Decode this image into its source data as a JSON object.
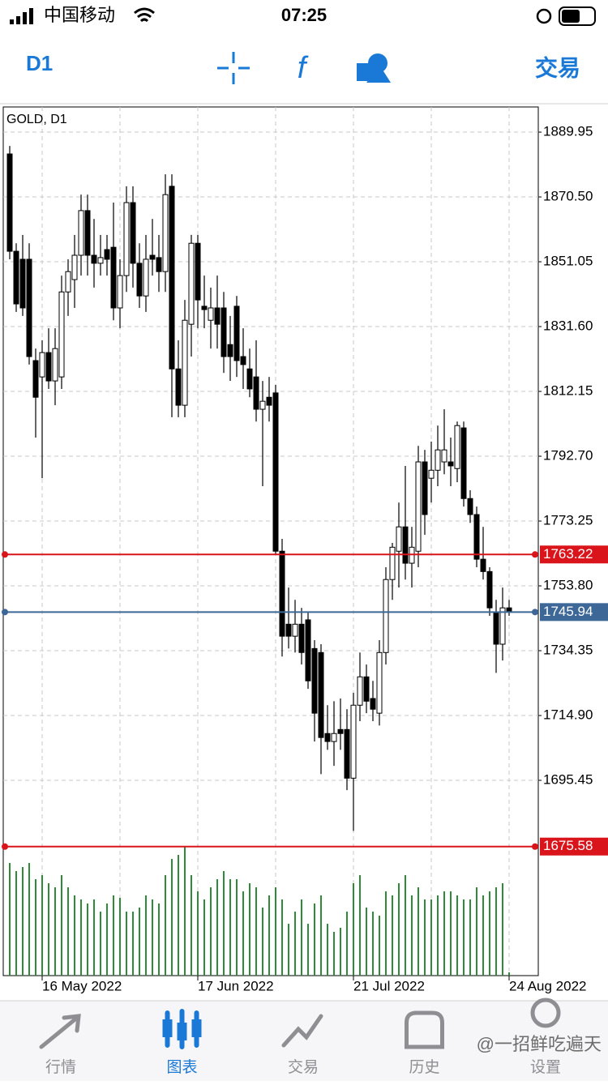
{
  "status_bar": {
    "carrier": "中国移动",
    "time": "07:25"
  },
  "toolbar": {
    "timeframe": "D1",
    "trade": "交易"
  },
  "chart_data": {
    "type": "candlestick",
    "title": "GOLD, D1",
    "categories": [
      null,
      null,
      null,
      null,
      null,
      "16 May 2022",
      null,
      null,
      null,
      null,
      null,
      null,
      null,
      null,
      null,
      null,
      null,
      null,
      null,
      null,
      null,
      null,
      null,
      null,
      null,
      null,
      null,
      null,
      null,
      "17 Jun 2022",
      null,
      null,
      null,
      null,
      null,
      null,
      null,
      null,
      null,
      null,
      null,
      null,
      null,
      null,
      null,
      null,
      null,
      null,
      null,
      null,
      null,
      null,
      null,
      "21 Jul 2022",
      null,
      null,
      null,
      null,
      null,
      null,
      null,
      null,
      null,
      null,
      null,
      null,
      null,
      null,
      null,
      null,
      null,
      null,
      null,
      null,
      null,
      null,
      null,
      "24 Aug 2022"
    ],
    "open": [
      1883.4,
      1854.2,
      1851.8,
      1851.8,
      1821.4,
      1816.5,
      1823.8,
      1815.3,
      1816.5,
      1842.0,
      1845.7,
      1853.0,
      1866.4,
      1853.0,
      1850.6,
      1854.7,
      1855.4,
      1837.2,
      1846.9,
      1868.8,
      1850.6,
      1840.8,
      1853.0,
      1852.3,
      1848.1,
      1873.7,
      1818.9,
      1808.0,
      1832.3,
      1856.6,
      1837.7,
      1833.5,
      1837.2,
      1837.2,
      1826.2,
      1837.7,
      1822.6,
      1818.9,
      1816.5,
      1806.8,
      1810.4,
      1811.7,
      1764.2,
      1742.3,
      1738.7,
      1742.3,
      1743.6,
      1735.0,
      1733.8,
      1709.5,
      1707.1,
      1710.7,
      1710.7,
      1696.1,
      1718.0,
      1726.5,
      1720.0,
      1715.6,
      1733.8,
      1755.7,
      1764.2,
      1771.5,
      1760.6,
      1764.2,
      1791.0,
      1786.1,
      1788.5,
      1791.0,
      1791.0,
      1789.0,
      1801.2,
      1780.0,
      1775.2,
      1761.8,
      1758.1,
      1746.0,
      1736.3,
      1747.2
    ],
    "high": [
      1885.8,
      1856.6,
      1859.1,
      1856.6,
      1825.0,
      1827.5,
      1831.1,
      1831.1,
      1846.9,
      1851.8,
      1859.1,
      1871.2,
      1871.2,
      1863.9,
      1859.1,
      1859.1,
      1868.8,
      1851.8,
      1873.7,
      1873.7,
      1856.6,
      1859.1,
      1863.9,
      1859.1,
      1877.3,
      1877.3,
      1827.5,
      1839.6,
      1859.1,
      1859.1,
      1846.9,
      1843.3,
      1846.9,
      1842.0,
      1834.8,
      1840.8,
      1831.1,
      1825.0,
      1827.5,
      1815.3,
      1816.5,
      1814.1,
      1767.9,
      1753.3,
      1749.6,
      1747.2,
      1746.0,
      1737.5,
      1736.3,
      1718.0,
      1719.2,
      1720.0,
      1716.8,
      1721.7,
      1733.8,
      1730.2,
      1725.3,
      1737.5,
      1759.4,
      1766.7,
      1778.8,
      1789.8,
      1771.5,
      1795.8,
      1794.6,
      1797.1,
      1801.9,
      1806.8,
      1798.3,
      1803.1,
      1803.1,
      1782.5,
      1777.6,
      1771.5,
      1759.4,
      1749.6,
      1753.3,
      1749.6
    ],
    "low": [
      1851.8,
      1836.0,
      1834.8,
      1820.2,
      1798.3,
      1786.1,
      1812.9,
      1808.0,
      1812.9,
      1834.8,
      1837.2,
      1846.9,
      1846.9,
      1843.3,
      1846.9,
      1846.9,
      1833.5,
      1831.1,
      1842.0,
      1843.3,
      1837.2,
      1836.0,
      1846.9,
      1842.0,
      1842.0,
      1804.4,
      1804.4,
      1804.4,
      1822.6,
      1831.1,
      1831.1,
      1825.0,
      1825.0,
      1817.7,
      1815.3,
      1816.5,
      1812.9,
      1810.4,
      1803.1,
      1783.7,
      1803.1,
      1763.0,
      1732.6,
      1735.0,
      1733.8,
      1730.2,
      1722.9,
      1707.1,
      1697.3,
      1704.6,
      1699.8,
      1704.6,
      1692.5,
      1680.3,
      1713.2,
      1715.6,
      1713.2,
      1711.9,
      1730.2,
      1749.6,
      1753.3,
      1755.7,
      1753.3,
      1759.4,
      1769.1,
      1778.8,
      1783.7,
      1787.3,
      1783.7,
      1784.9,
      1777.6,
      1772.7,
      1759.4,
      1755.7,
      1744.8,
      1727.7,
      1731.4,
      1744.8
    ],
    "close": [
      1854.2,
      1838.4,
      1837.2,
      1822.6,
      1810.4,
      1823.8,
      1815.3,
      1825.0,
      1842.0,
      1848.1,
      1853.0,
      1866.4,
      1853.0,
      1850.6,
      1852.3,
      1851.8,
      1837.2,
      1846.9,
      1868.8,
      1850.6,
      1840.8,
      1851.8,
      1851.8,
      1848.1,
      1871.2,
      1818.9,
      1808.0,
      1833.5,
      1856.6,
      1839.6,
      1836.7,
      1837.2,
      1832.3,
      1822.6,
      1822.6,
      1821.4,
      1820.2,
      1812.9,
      1806.8,
      1809.2,
      1808.0,
      1764.2,
      1738.7,
      1738.7,
      1742.3,
      1733.8,
      1725.3,
      1715.6,
      1708.3,
      1707.1,
      1709.5,
      1709.5,
      1696.1,
      1718.0,
      1726.5,
      1719.2,
      1716.8,
      1733.8,
      1755.7,
      1765.4,
      1771.5,
      1760.6,
      1765.4,
      1791.0,
      1775.2,
      1788.5,
      1794.6,
      1794.6,
      1789.8,
      1801.9,
      1780.0,
      1775.2,
      1761.8,
      1758.1,
      1747.2,
      1736.3,
      1747.2,
      1745.9
    ],
    "up_color": "#ffffff",
    "down_color": "#000000",
    "volume": [
      139,
      129,
      134,
      139,
      119,
      124,
      114,
      109,
      124,
      109,
      99,
      94,
      89,
      94,
      79,
      89,
      99,
      96,
      79,
      79,
      84,
      99,
      94,
      89,
      124,
      144,
      149,
      159,
      124,
      104,
      94,
      109,
      119,
      129,
      119,
      119,
      104,
      114,
      109,
      84,
      99,
      109,
      94,
      64,
      79,
      94,
      64,
      89,
      99,
      64,
      54,
      59,
      79,
      114,
      124,
      84,
      79,
      74,
      104,
      99,
      114,
      124,
      99,
      109,
      94,
      94,
      99,
      104,
      104,
      99,
      94,
      94,
      109,
      99,
      104,
      109,
      114,
      4
    ],
    "volume_color": "#2f8a3a",
    "volume_ylim": [
      0,
      164
    ],
    "ylim": [
      1674.3,
      1897.5
    ],
    "yticks": [
      1889.95,
      {
        "value": 1870.5,
        "label": "1870.50"
      },
      1851.05,
      {
        "value": 1831.6,
        "label": "1831.60"
      },
      1812.15,
      {
        "value": 1792.7,
        "label": "1792.70"
      },
      1773.25,
      {
        "value": 1753.8,
        "label": "1753.80"
      },
      1734.35,
      {
        "value": 1714.9,
        "label": "1714.90"
      },
      1695.45
    ],
    "grid": true,
    "price_lines": [
      {
        "value": 1763.22,
        "color": "#d9151b"
      },
      {
        "value": 1675.58,
        "color": "#d9151b"
      },
      {
        "value": 1745.94,
        "color": "#3c6797"
      }
    ]
  },
  "tab_bar": {
    "tabs": [
      "行情",
      "图表",
      "交易",
      "历史",
      "设置"
    ],
    "active": 1
  },
  "watermark": "@一招鲜吃遍天"
}
